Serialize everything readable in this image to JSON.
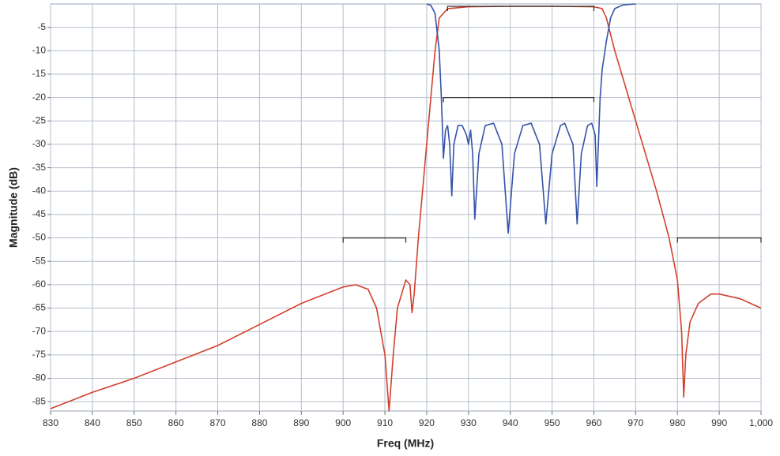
{
  "chart_data": {
    "type": "line",
    "xlabel": "Freq (MHz)",
    "ylabel": "Magnitude (dB)",
    "xlim": [
      830,
      1000
    ],
    "ylim": [
      -87,
      0
    ],
    "xticks": [
      830,
      840,
      850,
      860,
      870,
      880,
      890,
      900,
      910,
      920,
      930,
      940,
      950,
      960,
      970,
      980,
      990,
      {
        "value": 1000,
        "label": "1,000"
      }
    ],
    "yticks": [
      -5,
      -10,
      -15,
      -20,
      -25,
      -30,
      -35,
      -40,
      -45,
      -50,
      -55,
      -60,
      -65,
      -70,
      -75,
      -80,
      -85
    ],
    "grid": true,
    "series": [
      {
        "color": "#d2402e",
        "x": [
          830,
          840,
          850,
          860,
          870,
          880,
          890,
          900,
          903,
          906,
          908,
          910,
          911,
          912,
          913,
          915,
          916,
          916.5,
          917,
          918,
          920,
          922,
          923,
          925,
          930,
          940,
          950,
          960,
          962,
          963,
          965,
          970,
          975,
          978,
          980,
          981,
          981.5,
          982,
          983,
          985,
          988,
          990,
          995,
          1000
        ],
        "values": [
          -86.5,
          -83,
          -80,
          -76.5,
          -73,
          -68.5,
          -64,
          -60.5,
          -60,
          -61,
          -65,
          -75,
          -87,
          -75,
          -65,
          -59,
          -60,
          -66,
          -62,
          -50,
          -30,
          -10,
          -3,
          -1,
          -0.6,
          -0.5,
          -0.5,
          -0.6,
          -1,
          -3,
          -10,
          -25,
          -40,
          -50,
          -59,
          -70,
          -84,
          -75,
          -68,
          -64,
          -62,
          -62,
          -63,
          -65
        ]
      },
      {
        "color": "#3553a8",
        "x": [
          920,
          921,
          922,
          923,
          923.5,
          924,
          924.5,
          925,
          925.5,
          926,
          926.5,
          927.5,
          928.5,
          929.5,
          930,
          930.5,
          931,
          931.5,
          932.5,
          934,
          936,
          938,
          939.5,
          941,
          943,
          945,
          947,
          948.5,
          950,
          952,
          953,
          955,
          956,
          957,
          958.5,
          959.5,
          960.3,
          960.7,
          961.5,
          962,
          963,
          964,
          965,
          967,
          970
        ],
        "values": [
          0,
          -0.3,
          -2,
          -10,
          -20,
          -33,
          -27,
          -26,
          -30,
          -41,
          -30,
          -26,
          -26,
          -28,
          -30,
          -27,
          -32,
          -46,
          -32,
          -26,
          -25.5,
          -30,
          -49,
          -32,
          -26,
          -25.5,
          -30,
          -47,
          -32,
          -26,
          -25.5,
          -30,
          -47,
          -32,
          -26,
          -25.5,
          -28,
          -39,
          -20,
          -14,
          -8,
          -3,
          -1,
          -0.2,
          0
        ]
      }
    ],
    "masks": [
      {
        "x": [
          900,
          915
        ],
        "value": -50
      },
      {
        "x": [
          924,
          960
        ],
        "value": -20
      },
      {
        "x": [
          925,
          960
        ],
        "value": -0.5
      },
      {
        "x": [
          980,
          1000
        ],
        "value": -50
      }
    ]
  }
}
